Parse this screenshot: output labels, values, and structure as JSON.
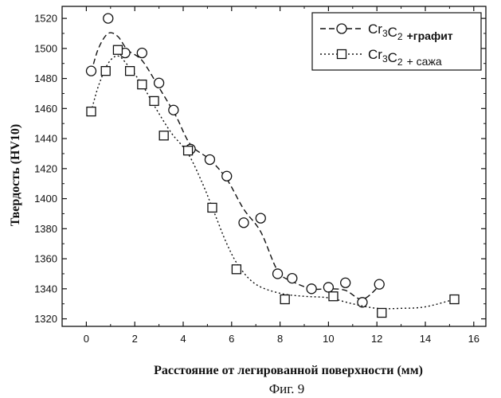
{
  "caption": "Фиг. 9",
  "chart_data": {
    "type": "scatter",
    "xlabel": "Расстояние от легированной поверхности (мм)",
    "ylabel": "Твердость (HV10)",
    "xlim": [
      -1,
      16.5
    ],
    "ylim": [
      1315,
      1528
    ],
    "xticks": [
      0,
      2,
      4,
      6,
      8,
      10,
      12,
      14,
      16
    ],
    "yticks": [
      1320,
      1340,
      1360,
      1380,
      1400,
      1420,
      1440,
      1460,
      1480,
      1500,
      1520
    ],
    "grid": false,
    "legend_position": "top-right",
    "series": [
      {
        "name_main": "Cr3C2",
        "name_suffix": "+графит",
        "marker": "circle",
        "line_style": "dashed",
        "points": [
          [
            0.2,
            1485
          ],
          [
            0.9,
            1520
          ],
          [
            1.6,
            1497
          ],
          [
            2.3,
            1497
          ],
          [
            3.0,
            1477
          ],
          [
            3.6,
            1459
          ],
          [
            4.3,
            1433
          ],
          [
            5.1,
            1426
          ],
          [
            5.8,
            1415
          ],
          [
            6.5,
            1384
          ],
          [
            7.2,
            1387
          ],
          [
            7.9,
            1350
          ],
          [
            8.5,
            1347
          ],
          [
            9.3,
            1340
          ],
          [
            10.0,
            1341
          ],
          [
            10.7,
            1344
          ],
          [
            11.4,
            1331
          ],
          [
            12.1,
            1343
          ]
        ],
        "trend": [
          [
            0.2,
            1484
          ],
          [
            0.5,
            1500
          ],
          [
            0.9,
            1510
          ],
          [
            1.3,
            1508
          ],
          [
            1.7,
            1499
          ],
          [
            2.3,
            1492
          ],
          [
            3.0,
            1474
          ],
          [
            3.7,
            1455
          ],
          [
            4.3,
            1436
          ],
          [
            5.1,
            1426
          ],
          [
            5.8,
            1413
          ],
          [
            6.5,
            1393
          ],
          [
            7.2,
            1378
          ],
          [
            7.9,
            1352
          ],
          [
            8.5,
            1345
          ],
          [
            9.3,
            1340
          ],
          [
            10.0,
            1340
          ],
          [
            10.7,
            1339
          ],
          [
            11.4,
            1333
          ],
          [
            12.1,
            1342
          ]
        ]
      },
      {
        "name_main": "Cr3C2",
        "name_suffix": "+ сажа",
        "marker": "square",
        "line_style": "dotted",
        "points": [
          [
            0.2,
            1458
          ],
          [
            0.8,
            1485
          ],
          [
            1.3,
            1499
          ],
          [
            1.8,
            1485
          ],
          [
            2.3,
            1476
          ],
          [
            2.8,
            1465
          ],
          [
            3.2,
            1442
          ],
          [
            4.2,
            1432
          ],
          [
            5.2,
            1394
          ],
          [
            6.2,
            1353
          ],
          [
            8.2,
            1333
          ],
          [
            10.2,
            1335
          ],
          [
            12.2,
            1324
          ],
          [
            15.2,
            1333
          ]
        ],
        "trend": [
          [
            0.2,
            1458
          ],
          [
            0.5,
            1475
          ],
          [
            0.9,
            1490
          ],
          [
            1.3,
            1495
          ],
          [
            1.7,
            1489
          ],
          [
            2.3,
            1476
          ],
          [
            2.8,
            1462
          ],
          [
            3.5,
            1444
          ],
          [
            4.2,
            1430
          ],
          [
            4.8,
            1410
          ],
          [
            5.3,
            1390
          ],
          [
            5.8,
            1370
          ],
          [
            6.3,
            1355
          ],
          [
            7.0,
            1343
          ],
          [
            8.0,
            1337
          ],
          [
            9.0,
            1335
          ],
          [
            10.0,
            1334
          ],
          [
            11.0,
            1330
          ],
          [
            12.0,
            1327
          ],
          [
            13.0,
            1327
          ],
          [
            14.0,
            1328
          ],
          [
            15.2,
            1333
          ]
        ]
      }
    ]
  }
}
